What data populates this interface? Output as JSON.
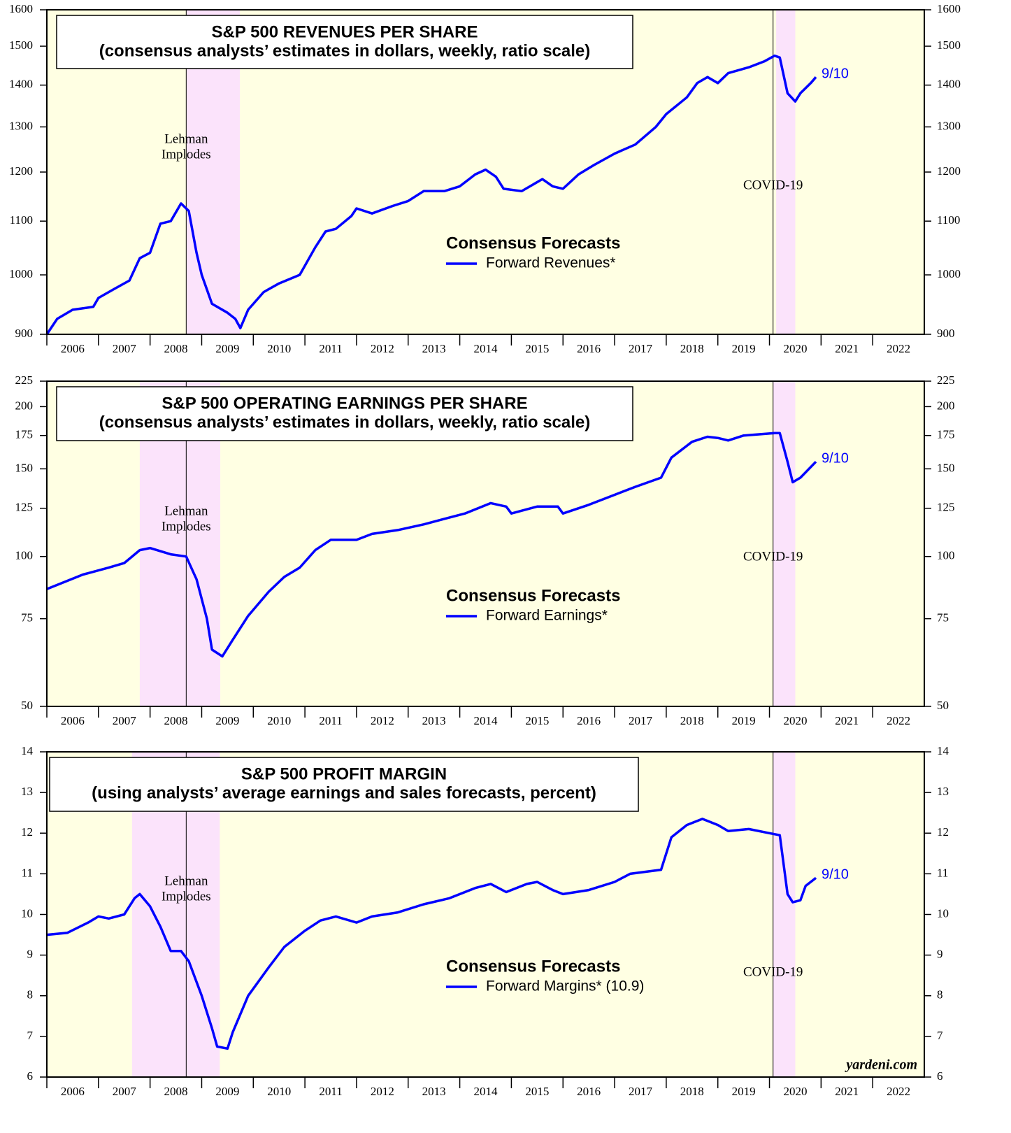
{
  "chart_data": [
    {
      "type": "line",
      "title": "S&P 500 REVENUES PER SHARE",
      "subtitle": "(consensus analysts’ estimates in dollars, weekly, ratio scale)",
      "log_scale": true,
      "ylim": [
        900,
        1600
      ],
      "yticks": [
        900,
        1000,
        1100,
        1200,
        1300,
        1400,
        1500,
        1600
      ],
      "xlim": [
        2006,
        2023
      ],
      "xticks": [
        2006,
        2007,
        2008,
        2009,
        2010,
        2011,
        2012,
        2013,
        2014,
        2015,
        2016,
        2017,
        2018,
        2019,
        2020,
        2021,
        2022
      ],
      "legend_title": "Consensus Forecasts",
      "end_label": "9/10",
      "shaded": [
        [
          2008.71,
          2009.74
        ],
        [
          2020.13,
          2020.5
        ]
      ],
      "vlines": [
        {
          "x": 2008.7,
          "label": [
            "Lehman",
            "Implodes"
          ]
        },
        {
          "x": 2020.07,
          "label": [
            "COVID-19"
          ]
        }
      ],
      "x": [
        2006.0,
        2006.2,
        2006.5,
        2006.9,
        2007.0,
        2007.3,
        2007.6,
        2007.8,
        2008.0,
        2008.2,
        2008.4,
        2008.6,
        2008.75,
        2008.9,
        2009.0,
        2009.2,
        2009.5,
        2009.65,
        2009.75,
        2009.9,
        2010.2,
        2010.5,
        2010.9,
        2011.2,
        2011.4,
        2011.6,
        2011.9,
        2012.0,
        2012.3,
        2012.7,
        2013.0,
        2013.3,
        2013.7,
        2014.0,
        2014.3,
        2014.5,
        2014.7,
        2014.85,
        2015.2,
        2015.6,
        2015.8,
        2016.0,
        2016.3,
        2016.6,
        2017.0,
        2017.4,
        2017.8,
        2018.0,
        2018.4,
        2018.6,
        2018.8,
        2019.0,
        2019.2,
        2019.6,
        2019.9,
        2020.1,
        2020.2,
        2020.35,
        2020.5,
        2020.6,
        2020.8,
        2020.9
      ],
      "series": [
        {
          "name": "Forward Revenues*",
          "color": "#0000ff",
          "values": [
            900,
            925,
            940,
            945,
            960,
            975,
            990,
            1030,
            1040,
            1095,
            1100,
            1135,
            1120,
            1040,
            1000,
            950,
            935,
            925,
            910,
            940,
            970,
            985,
            1000,
            1050,
            1080,
            1085,
            1110,
            1125,
            1115,
            1130,
            1140,
            1160,
            1160,
            1170,
            1195,
            1205,
            1190,
            1165,
            1160,
            1185,
            1170,
            1165,
            1195,
            1215,
            1240,
            1260,
            1300,
            1330,
            1370,
            1405,
            1420,
            1405,
            1430,
            1445,
            1460,
            1475,
            1470,
            1380,
            1360,
            1380,
            1405,
            1420
          ]
        }
      ]
    },
    {
      "type": "line",
      "title": "S&P 500 OPERATING EARNINGS PER SHARE",
      "subtitle": "(consensus analysts’ estimates in dollars, weekly, ratio scale)",
      "log_scale": true,
      "ylim": [
        50,
        225
      ],
      "yticks": [
        50,
        75,
        100,
        125,
        150,
        175,
        200,
        225
      ],
      "xlim": [
        2006,
        2023
      ],
      "xticks": [
        2006,
        2007,
        2008,
        2009,
        2010,
        2011,
        2012,
        2013,
        2014,
        2015,
        2016,
        2017,
        2018,
        2019,
        2020,
        2021,
        2022
      ],
      "legend_title": "Consensus Forecasts",
      "end_label": "9/10",
      "shaded": [
        [
          2007.8,
          2009.36
        ],
        [
          2020.07,
          2020.5
        ]
      ],
      "vlines": [
        {
          "x": 2008.7,
          "label": [
            "Lehman",
            "Implodes"
          ]
        },
        {
          "x": 2020.07,
          "label": [
            "COVID-19"
          ]
        }
      ],
      "x": [
        2006.0,
        2006.7,
        2007.2,
        2007.5,
        2007.8,
        2008.0,
        2008.4,
        2008.7,
        2008.9,
        2009.1,
        2009.2,
        2009.4,
        2009.6,
        2009.9,
        2010.3,
        2010.6,
        2010.9,
        2011.2,
        2011.5,
        2012.0,
        2012.3,
        2012.8,
        2013.3,
        2013.7,
        2014.1,
        2014.6,
        2014.9,
        2015.0,
        2015.5,
        2015.9,
        2016.0,
        2016.5,
        2017.0,
        2017.4,
        2017.9,
        2018.1,
        2018.5,
        2018.8,
        2019.0,
        2019.2,
        2019.5,
        2020.1,
        2020.2,
        2020.35,
        2020.45,
        2020.6,
        2020.9
      ],
      "series": [
        {
          "name": "Forward Earnings*",
          "color": "#0000ff",
          "values": [
            86,
            92,
            95,
            97,
            103,
            104,
            101,
            100,
            90,
            75,
            65,
            63,
            68,
            76,
            85,
            91,
            95,
            103,
            108,
            108,
            111,
            113,
            116,
            119,
            122,
            128,
            126,
            122,
            126,
            126,
            122,
            127,
            133,
            138,
            144,
            158,
            170,
            174,
            173,
            171,
            175,
            177,
            177,
            155,
            141,
            144,
            155
          ]
        }
      ]
    },
    {
      "type": "line",
      "title": "S&P 500 PROFIT MARGIN",
      "subtitle": "(using analysts’ average earnings and sales forecasts, percent)",
      "log_scale": false,
      "ylim": [
        6,
        14
      ],
      "yticks": [
        6,
        7,
        8,
        9,
        10,
        11,
        12,
        13,
        14
      ],
      "xlim": [
        2006,
        2023
      ],
      "xticks": [
        2006,
        2007,
        2008,
        2009,
        2010,
        2011,
        2012,
        2013,
        2014,
        2015,
        2016,
        2017,
        2018,
        2019,
        2020,
        2021,
        2022
      ],
      "legend_title": "Consensus Forecasts",
      "end_label": "9/10",
      "source": "yardeni.com",
      "shaded": [
        [
          2007.65,
          2009.35
        ],
        [
          2020.07,
          2020.5
        ]
      ],
      "vlines": [
        {
          "x": 2008.7,
          "label": [
            "Lehman",
            "Implodes"
          ]
        },
        {
          "x": 2020.07,
          "label": [
            "COVID-19"
          ]
        }
      ],
      "x": [
        2006.0,
        2006.4,
        2006.8,
        2007.0,
        2007.2,
        2007.5,
        2007.7,
        2007.8,
        2008.0,
        2008.2,
        2008.4,
        2008.6,
        2008.75,
        2009.0,
        2009.2,
        2009.3,
        2009.5,
        2009.6,
        2009.9,
        2010.3,
        2010.6,
        2011.0,
        2011.3,
        2011.6,
        2012.0,
        2012.3,
        2012.8,
        2013.3,
        2013.8,
        2014.3,
        2014.6,
        2014.9,
        2015.3,
        2015.5,
        2015.8,
        2016.0,
        2016.5,
        2017.0,
        2017.3,
        2017.9,
        2018.1,
        2018.4,
        2018.7,
        2019.0,
        2019.2,
        2019.6,
        2020.0,
        2020.2,
        2020.35,
        2020.45,
        2020.6,
        2020.7,
        2020.9
      ],
      "series": [
        {
          "name": "Forward Margins* (10.9)",
          "color": "#0000ff",
          "values": [
            9.5,
            9.55,
            9.8,
            9.95,
            9.9,
            10.0,
            10.4,
            10.5,
            10.2,
            9.7,
            9.1,
            9.1,
            8.85,
            8.0,
            7.2,
            6.75,
            6.7,
            7.1,
            8.0,
            8.7,
            9.2,
            9.6,
            9.85,
            9.95,
            9.8,
            9.95,
            10.05,
            10.25,
            10.4,
            10.65,
            10.75,
            10.55,
            10.75,
            10.8,
            10.6,
            10.5,
            10.6,
            10.8,
            11.0,
            11.1,
            11.9,
            12.2,
            12.35,
            12.2,
            12.05,
            12.1,
            12.0,
            11.95,
            10.5,
            10.3,
            10.35,
            10.7,
            10.9
          ]
        }
      ]
    }
  ]
}
